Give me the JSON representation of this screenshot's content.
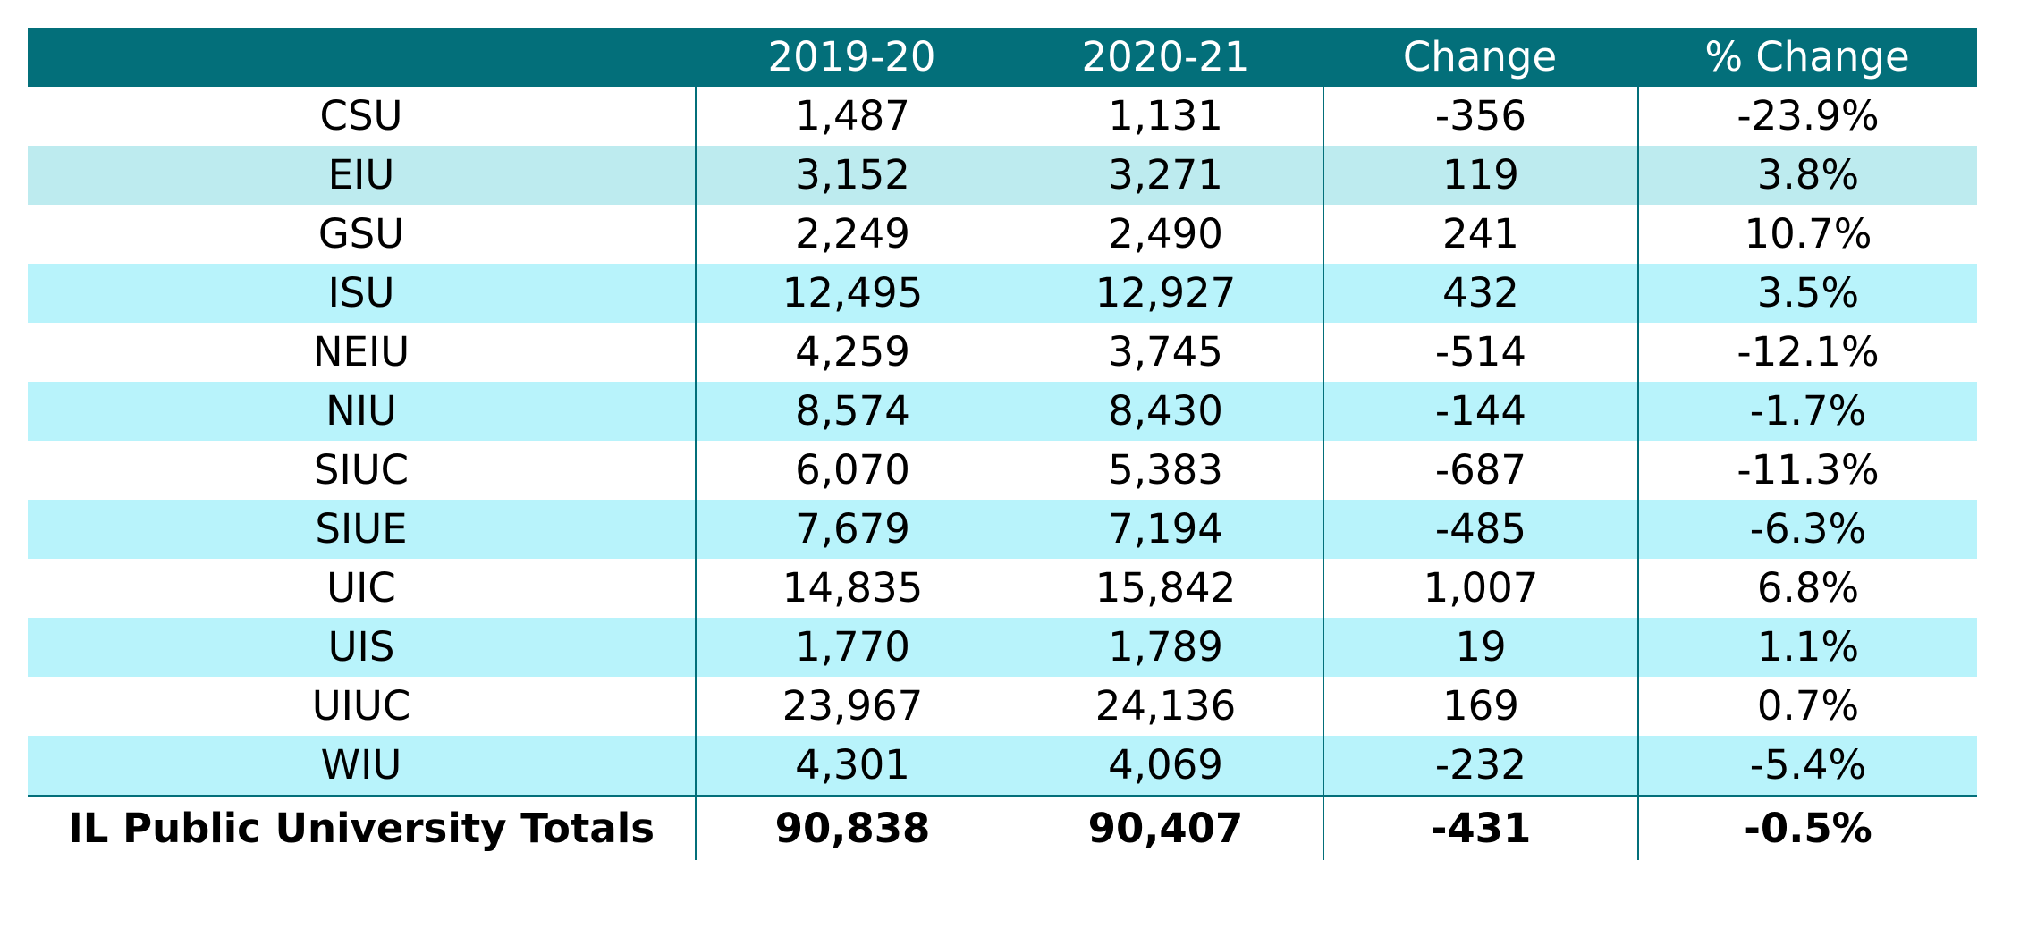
{
  "chart_data": {
    "type": "table",
    "columns": [
      "",
      "2019-20",
      "2020-21",
      "Change",
      "% Change"
    ],
    "rows": [
      {
        "name": "CSU",
        "y2019_20": "1,487",
        "y2020_21": "1,131",
        "change": "-356",
        "pct_change": "-23.9%"
      },
      {
        "name": "EIU",
        "y2019_20": "3,152",
        "y2020_21": "3,271",
        "change": "119",
        "pct_change": "3.8%"
      },
      {
        "name": "GSU",
        "y2019_20": "2,249",
        "y2020_21": "2,490",
        "change": "241",
        "pct_change": "10.7%"
      },
      {
        "name": "ISU",
        "y2019_20": "12,495",
        "y2020_21": "12,927",
        "change": "432",
        "pct_change": "3.5%"
      },
      {
        "name": "NEIU",
        "y2019_20": "4,259",
        "y2020_21": "3,745",
        "change": "-514",
        "pct_change": "-12.1%"
      },
      {
        "name": "NIU",
        "y2019_20": "8,574",
        "y2020_21": "8,430",
        "change": "-144",
        "pct_change": "-1.7%"
      },
      {
        "name": "SIUC",
        "y2019_20": "6,070",
        "y2020_21": "5,383",
        "change": "-687",
        "pct_change": "-11.3%"
      },
      {
        "name": "SIUE",
        "y2019_20": "7,679",
        "y2020_21": "7,194",
        "change": "-485",
        "pct_change": "-6.3%"
      },
      {
        "name": "UIC",
        "y2019_20": "14,835",
        "y2020_21": "15,842",
        "change": "1,007",
        "pct_change": "6.8%"
      },
      {
        "name": "UIS",
        "y2019_20": "1,770",
        "y2020_21": "1,789",
        "change": "19",
        "pct_change": "1.1%"
      },
      {
        "name": "UIUC",
        "y2019_20": "23,967",
        "y2020_21": "24,136",
        "change": "169",
        "pct_change": "0.7%"
      },
      {
        "name": "WIU",
        "y2019_20": "4,301",
        "y2020_21": "4,069",
        "change": "-232",
        "pct_change": "-5.4%"
      }
    ],
    "totals": {
      "name": "IL Public University Totals",
      "y2019_20": "90,838",
      "y2020_21": "90,407",
      "change": "-431",
      "pct_change": "-0.5%"
    },
    "colors": {
      "header_bg": "#036f7a",
      "header_text": "#ffffff",
      "band_a": "#bdebef",
      "band_b": "#b8f3fb",
      "separator": "#036f7a"
    }
  }
}
